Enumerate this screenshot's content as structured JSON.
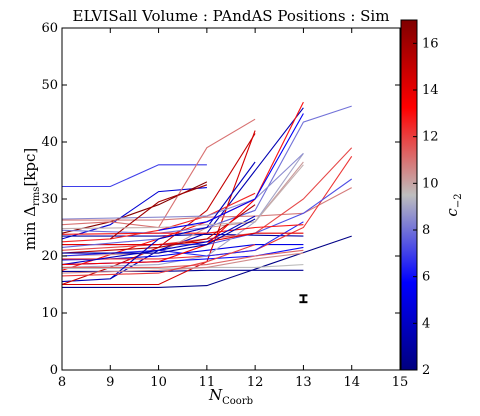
{
  "chart_data": {
    "type": "line",
    "title": "ELVISall   Volume : PAndAS   Positions : Sim",
    "xlabel": "N",
    "xlabel_sub": "Coorb",
    "ylabel": "min Δ",
    "ylabel_sub": "rms",
    "ylabel_suffix": "[kpc]",
    "xlim": [
      8,
      15
    ],
    "ylim": [
      0,
      60
    ],
    "xticks": [
      8,
      9,
      10,
      11,
      12,
      13,
      14,
      15
    ],
    "yticks": [
      0,
      10,
      20,
      30,
      40,
      50,
      60
    ],
    "grid": false,
    "colorbar": {
      "label": "c",
      "label_sub": "−2",
      "range": [
        2,
        17
      ],
      "ticks": [
        2,
        4,
        6,
        8,
        10,
        12,
        14,
        16
      ],
      "colormap": [
        "#00007f",
        "#0000ff",
        "#bebebe",
        "#ff0000",
        "#7f0000"
      ]
    },
    "errorbar": {
      "x": 13,
      "y": 12.5,
      "yerr": 0.6
    },
    "series": [
      {
        "c": 7.0,
        "x": [
          8,
          9,
          10,
          11
        ],
        "y": [
          32.2,
          32.2,
          36.0,
          36.0
        ]
      },
      {
        "c": 4.5,
        "x": [
          8,
          9,
          10,
          11
        ],
        "y": [
          23.0,
          25.5,
          31.3,
          32.0
        ]
      },
      {
        "c": 16.8,
        "x": [
          8,
          9,
          10,
          11
        ],
        "y": [
          24.0,
          26.0,
          29.0,
          33.0
        ]
      },
      {
        "c": 2.2,
        "x": [
          8,
          10,
          11,
          14
        ],
        "y": [
          14.5,
          14.5,
          14.8,
          23.5
        ]
      },
      {
        "c": 3.5,
        "x": [
          8,
          9,
          10,
          11,
          13
        ],
        "y": [
          15.5,
          16.0,
          21.0,
          24.0,
          46.0
        ]
      },
      {
        "c": 2.6,
        "x": [
          8,
          10,
          11,
          13
        ],
        "y": [
          17.3,
          17.3,
          17.5,
          17.5
        ]
      },
      {
        "c": 3.0,
        "x": [
          8,
          10,
          11,
          13
        ],
        "y": [
          23.5,
          23.5,
          23.8,
          23.5
        ]
      },
      {
        "c": 5.0,
        "x": [
          8,
          9,
          10,
          11,
          12,
          13
        ],
        "y": [
          19.3,
          19.5,
          20.0,
          21.0,
          22.0,
          22.0
        ]
      },
      {
        "c": 15.0,
        "x": [
          8,
          9,
          10,
          11,
          12
        ],
        "y": [
          15.0,
          18.0,
          21.5,
          28.0,
          41.5
        ]
      },
      {
        "c": 13.0,
        "x": [
          8,
          10,
          11,
          12,
          13
        ],
        "y": [
          17.5,
          23.0,
          26.0,
          30.0,
          47.0
        ]
      },
      {
        "c": 14.5,
        "x": [
          8,
          10,
          11,
          12
        ],
        "y": [
          15.0,
          15.0,
          19.0,
          42.0
        ]
      },
      {
        "c": 12.5,
        "x": [
          8,
          9,
          10,
          11,
          12
        ],
        "y": [
          22.5,
          23.0,
          24.5,
          27.0,
          31.0
        ]
      },
      {
        "c": 11.0,
        "x": [
          8,
          9,
          10,
          11,
          12
        ],
        "y": [
          25.5,
          26.0,
          25.0,
          39.0,
          44.0
        ]
      },
      {
        "c": 10.8,
        "x": [
          8,
          10,
          11,
          12,
          13,
          14
        ],
        "y": [
          26.3,
          26.3,
          26.8,
          27.0,
          27.5,
          32.0
        ]
      },
      {
        "c": 11.8,
        "x": [
          8,
          10,
          11,
          12,
          13,
          14
        ],
        "y": [
          21.0,
          22.0,
          23.0,
          24.0,
          30.0,
          39.0
        ]
      },
      {
        "c": 12.2,
        "x": [
          8,
          10,
          11,
          12,
          13,
          14
        ],
        "y": [
          19.5,
          19.5,
          20.0,
          21.0,
          25.0,
          37.5
        ]
      },
      {
        "c": 8.0,
        "x": [
          8,
          10,
          11,
          12,
          13,
          14
        ],
        "y": [
          24.5,
          24.0,
          25.0,
          28.0,
          43.5,
          46.3
        ]
      },
      {
        "c": 7.3,
        "x": [
          8,
          10,
          11,
          12,
          13,
          14
        ],
        "y": [
          22.0,
          22.0,
          22.0,
          24.0,
          27.5,
          33.5
        ]
      },
      {
        "c": 10.2,
        "x": [
          8,
          10,
          11,
          12,
          13
        ],
        "y": [
          20.0,
          20.5,
          25.0,
          26.0,
          36.5
        ]
      },
      {
        "c": 9.0,
        "x": [
          8,
          10,
          11,
          12,
          13
        ],
        "y": [
          18.0,
          18.5,
          20.0,
          26.0,
          38.0
        ]
      },
      {
        "c": 6.5,
        "x": [
          8,
          10,
          11,
          12,
          13
        ],
        "y": [
          20.0,
          21.0,
          20.0,
          21.0,
          26.0
        ]
      },
      {
        "c": 12.8,
        "x": [
          8,
          10,
          11,
          12,
          13
        ],
        "y": [
          23.8,
          24.0,
          24.0,
          25.0,
          25.5
        ]
      },
      {
        "c": 6.0,
        "x": [
          8,
          10,
          11,
          12,
          13
        ],
        "y": [
          18.5,
          19.0,
          19.5,
          20.0,
          21.5
        ]
      },
      {
        "c": 11.3,
        "x": [
          8,
          10,
          11,
          12,
          13
        ],
        "y": [
          18.0,
          18.0,
          18.5,
          20.0,
          21.0
        ]
      },
      {
        "c": 14.0,
        "x": [
          8,
          10,
          11,
          12,
          13
        ],
        "y": [
          22.0,
          22.0,
          22.5,
          24.0,
          24.0
        ]
      },
      {
        "c": 9.5,
        "x": [
          8,
          10,
          11,
          12,
          13
        ],
        "y": [
          17.8,
          17.8,
          18.0,
          18.0,
          18.5
        ]
      },
      {
        "c": 7.8,
        "x": [
          8,
          10,
          11,
          12
        ],
        "y": [
          21.5,
          23.0,
          25.0,
          28.0
        ]
      },
      {
        "c": 8.5,
        "x": [
          8,
          10,
          11,
          12,
          13
        ],
        "y": [
          26.5,
          26.8,
          27.0,
          30.0,
          38.0
        ]
      },
      {
        "c": 4.0,
        "x": [
          8,
          10,
          11,
          12
        ],
        "y": [
          18.5,
          21.0,
          22.5,
          27.0
        ]
      },
      {
        "c": 15.5,
        "x": [
          8,
          10,
          11,
          12
        ],
        "y": [
          20.5,
          21.5,
          23.0,
          29.0
        ]
      },
      {
        "c": 3.8,
        "x": [
          9,
          10,
          11,
          12
        ],
        "y": [
          16.0,
          23.0,
          25.0,
          36.5
        ]
      },
      {
        "c": 16.0,
        "x": [
          9,
          10,
          11
        ],
        "y": [
          23.0,
          29.5,
          32.5
        ]
      },
      {
        "c": 13.5,
        "x": [
          8,
          10,
          11,
          12
        ],
        "y": [
          18.5,
          19.0,
          22.0,
          30.0
        ]
      },
      {
        "c": 10.5,
        "x": [
          8,
          10,
          11,
          12,
          13
        ],
        "y": [
          17.0,
          17.5,
          18.0,
          19.5,
          20.5
        ]
      },
      {
        "c": 12.0,
        "x": [
          8,
          10,
          11,
          12
        ],
        "y": [
          16.5,
          17.0,
          19.0,
          22.0
        ]
      },
      {
        "c": 9.8,
        "x": [
          8,
          10,
          11,
          12,
          13
        ],
        "y": [
          24.8,
          25.0,
          25.5,
          26.0,
          36.0
        ]
      },
      {
        "c": 3.2,
        "x": [
          8,
          10,
          11,
          12
        ],
        "y": [
          20.5,
          20.5,
          22.0,
          26.5
        ]
      },
      {
        "c": 5.5,
        "x": [
          10,
          11,
          12,
          13
        ],
        "y": [
          24.5,
          26.0,
          30.0,
          45.0
        ]
      }
    ]
  }
}
